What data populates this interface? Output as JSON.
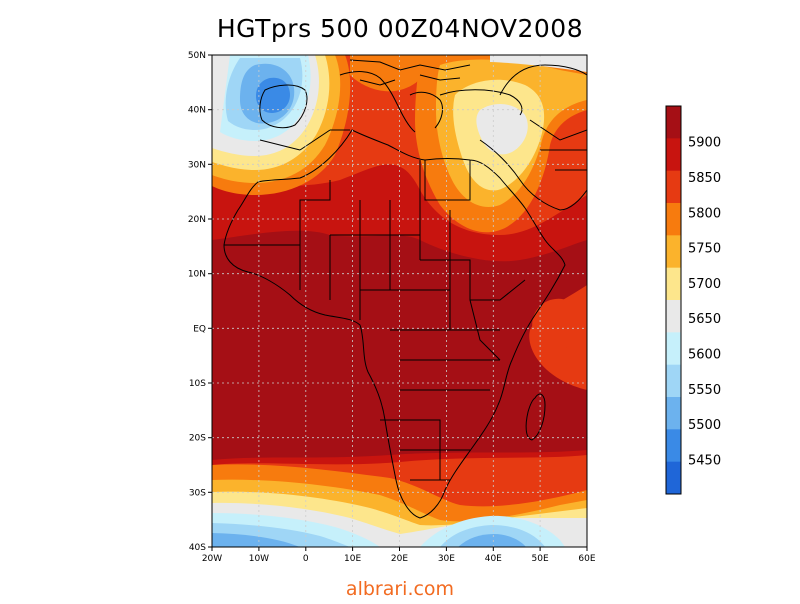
{
  "title": "HGTprs 500 00Z04NOV2008",
  "watermark": "albrari.com",
  "map": {
    "lat_labels": [
      "50N",
      "40N",
      "30N",
      "20N",
      "10N",
      "EQ",
      "10S",
      "20S",
      "30S",
      "40S"
    ],
    "lon_labels": [
      "20W",
      "10W",
      "0",
      "10E",
      "20E",
      "30E",
      "40E",
      "50E",
      "60E"
    ]
  },
  "colorbar": {
    "labels": [
      "5900",
      "5850",
      "5800",
      "5750",
      "5700",
      "5650",
      "5600",
      "5550",
      "5500",
      "5450"
    ],
    "colors": [
      "#a50f15",
      "#c8140f",
      "#e63a12",
      "#f77b0e",
      "#fbb32c",
      "#fde68c",
      "#e9e9e9",
      "#c6f0fb",
      "#9fd6f6",
      "#6cb2ee",
      "#3a8ae6",
      "#1f66d8"
    ]
  },
  "colors": {
    "c5900": "#a50f15",
    "c5850": "#c8140f",
    "c5800": "#e63a12",
    "c5750": "#f77b0e",
    "c5700": "#fbb32c",
    "c5650": "#fde68c",
    "c5600": "#e9e9e9",
    "c5550": "#c6f0fb",
    "c5500": "#9fd6f6",
    "c5450": "#6cb2ee",
    "c5400": "#3a8ae6",
    "watermark": "#f26b21"
  }
}
